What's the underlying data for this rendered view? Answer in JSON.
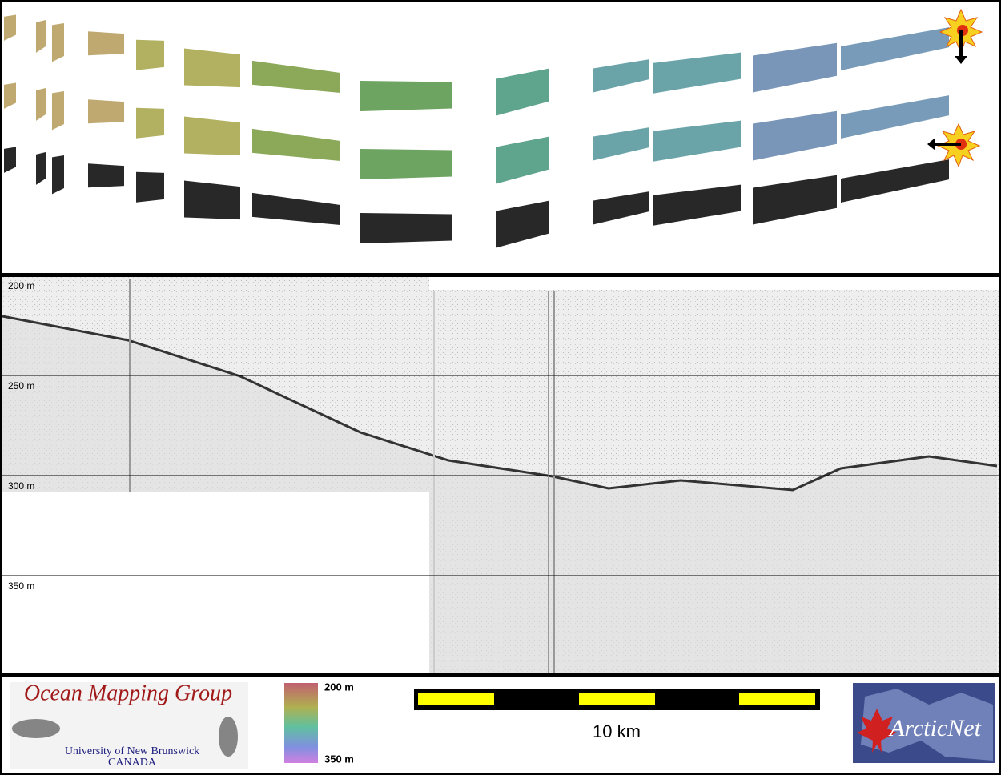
{
  "profile": {
    "depth_labels": [
      "200 m",
      "250 m",
      "300 m",
      "350 m"
    ]
  },
  "footer": {
    "logo_title": "Ocean Mapping Group",
    "logo_university": "University of New Brunswick",
    "logo_country": "CANADA",
    "colorbar_top": "200 m",
    "colorbar_bottom": "350 m",
    "scale_label": "10 km",
    "partner_logo": "ArcticNet"
  }
}
